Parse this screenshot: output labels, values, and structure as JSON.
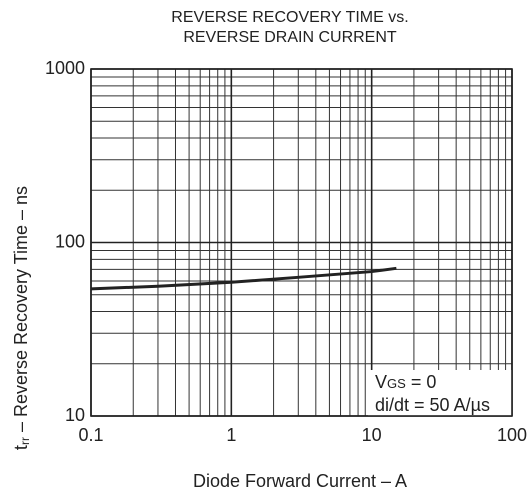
{
  "chart_data": {
    "type": "line",
    "title": [
      "REVERSE RECOVERY TIME vs.",
      "REVERSE DRAIN CURRENT"
    ],
    "xlabel": "Diode Forward Current – A",
    "ylabel": {
      "main": "t",
      "sub": "rr",
      "tail": " – Reverse Recovery Time – ns"
    },
    "x_log": true,
    "y_log": true,
    "grid": true,
    "minor_grid": true,
    "xlim": [
      0.1,
      100
    ],
    "ylim": [
      10,
      1000
    ],
    "xticks": [
      0.1,
      1,
      10,
      100
    ],
    "yticks": [
      10,
      100,
      1000
    ],
    "x": [
      0.1,
      0.3,
      1,
      3,
      10,
      15
    ],
    "series": [
      {
        "name": null,
        "color": "#222222",
        "values": [
          54,
          56,
          59,
          63,
          68,
          71
        ]
      }
    ],
    "annotations": [
      {
        "main": "V",
        "sub": "GS",
        "tail": " = 0"
      },
      "di/dt = 50 A/µs"
    ]
  }
}
